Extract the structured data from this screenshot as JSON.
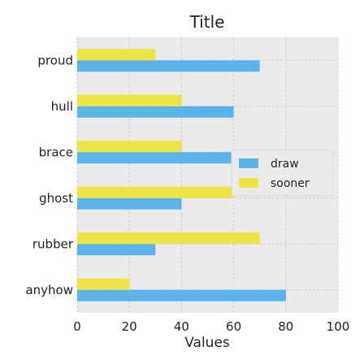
{
  "chart_data": {
    "type": "bar",
    "orientation": "horizontal",
    "title": "Title",
    "xlabel": "Values",
    "ylabel": "",
    "xlim": [
      0,
      100
    ],
    "xticks": [
      0,
      20,
      40,
      60,
      80,
      100
    ],
    "grid": true,
    "legend_position": "center-right",
    "categories": [
      "anyhow",
      "rubber",
      "ghost",
      "brace",
      "hull",
      "proud"
    ],
    "series": [
      {
        "name": "draw",
        "color": "#5ab4ec",
        "values": [
          80,
          30,
          40,
          60,
          60,
          70
        ]
      },
      {
        "name": "sooner",
        "color": "#eee443",
        "values": [
          20,
          70,
          60,
          40,
          40,
          30
        ]
      }
    ],
    "plot_background": "#ebebeb",
    "grid_color": "#cfcfcf"
  }
}
